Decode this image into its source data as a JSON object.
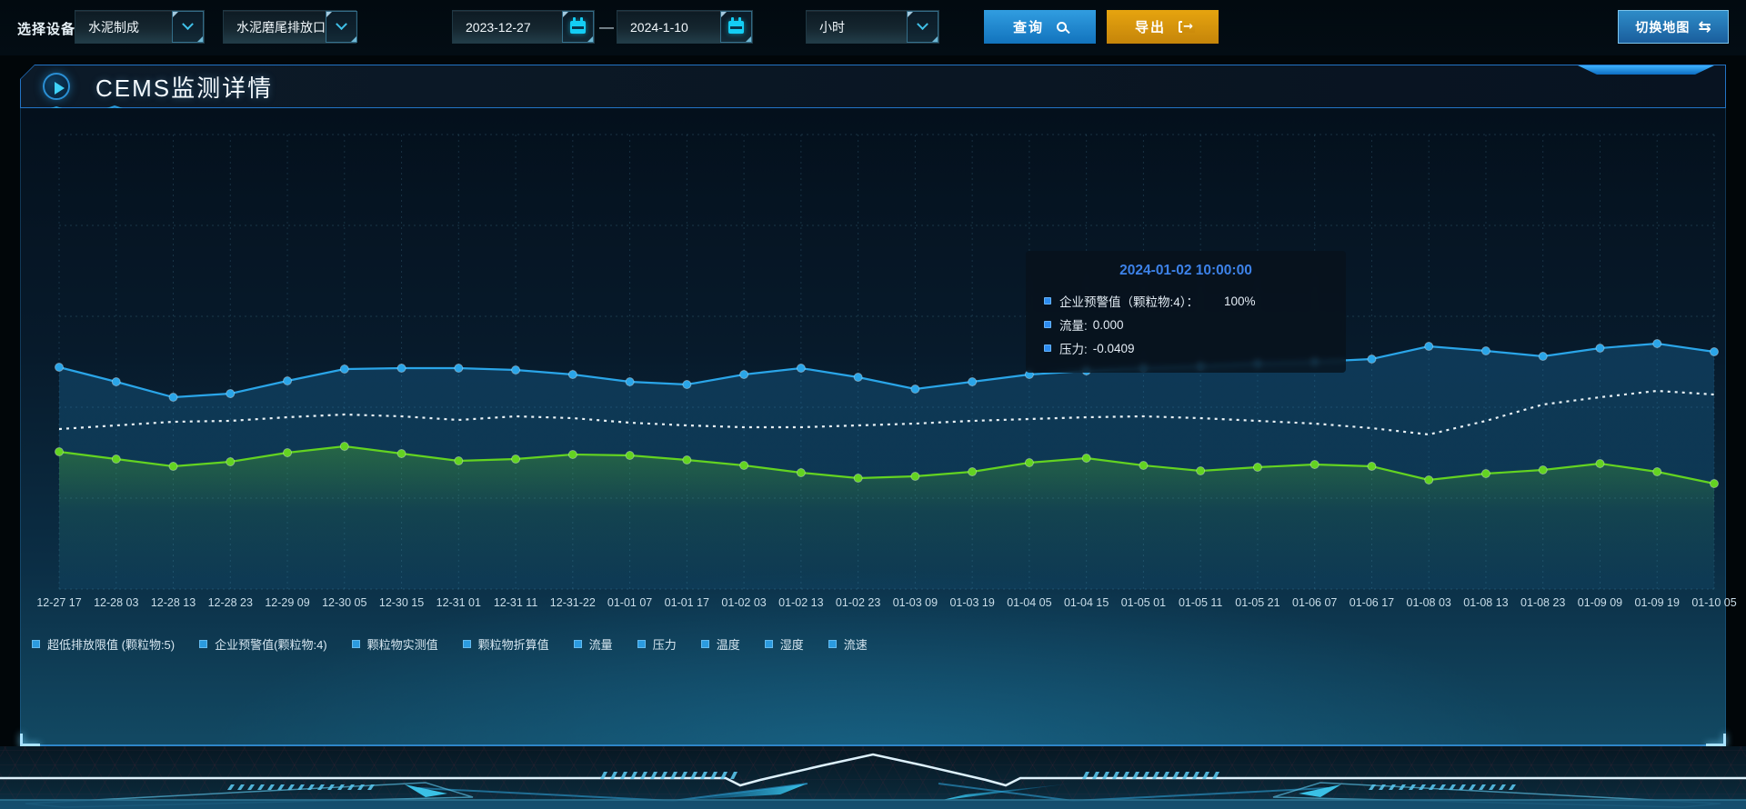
{
  "toolbar": {
    "device_label": "选择设备",
    "device_select": {
      "value": "水泥制成"
    },
    "outlet_select": {
      "value": "水泥磨尾排放口"
    },
    "date_start": "2023-12-27",
    "date_separator": "—",
    "date_end": "2024-1-10",
    "interval_select": {
      "value": "小时"
    },
    "query_button": "查询",
    "export_button": "导出",
    "map_button": "切换地图"
  },
  "panel": {
    "title": "CEMS监测详情"
  },
  "tooltip": {
    "title": "2024-01-02 10:00:00",
    "rows": [
      {
        "label": "企业预警值（颗粒物:4）：",
        "value": "100%",
        "wide_gap": true
      },
      {
        "label": "流量:",
        "value": "0.000",
        "wide_gap": false
      },
      {
        "label": "压力:",
        "value": "-0.0409",
        "wide_gap": false
      }
    ]
  },
  "legend": [
    "超低排放限值 (颗粒物:5)",
    "企业预警值(颗粒物:4)",
    "颗粒物实测值",
    "颗粒物折算值",
    "流量",
    "压力",
    "温度",
    "湿度",
    "流速"
  ],
  "chart_data": {
    "type": "line",
    "title": "",
    "xlabel": "",
    "ylabel": "",
    "y_axis_shown": false,
    "grid": "dashed",
    "legend_position": "bottom",
    "ylim": [
      0,
      100
    ],
    "x_labels": [
      "12-27 17",
      "12-28 03",
      "12-28 13",
      "12-28 23",
      "12-29 09",
      "12-30 05",
      "12-30 15",
      "12-31 01",
      "12-31 11",
      "12-31-22",
      "01-01 07",
      "01-01 17",
      "01-02 03",
      "01-02 13",
      "01-02 23",
      "01-03 09",
      "01-03 19",
      "01-04 05",
      "01-04 15",
      "01-05 01",
      "01-05 11",
      "01-05 21",
      "01-06 07",
      "01-06 17",
      "01-08 03",
      "01-08 13",
      "01-08 23",
      "01-09 09",
      "01-09 19",
      "01-10 05"
    ],
    "series": [
      {
        "name": "流量",
        "color": "#2aa5e8",
        "line_style": "solid",
        "markers": true,
        "area_fill": true,
        "values_normalized_0_100": [
          48.8,
          45.6,
          42.2,
          43,
          45.8,
          48.4,
          48.6,
          48.6,
          48.2,
          47.2,
          45.6,
          45,
          47.2,
          48.6,
          46.6,
          44,
          45.6,
          47.2,
          48,
          48.6,
          49,
          49.6,
          50,
          50.6,
          53.4,
          52.4,
          51.2,
          53,
          54,
          52.2
        ]
      },
      {
        "name": "企业预警值(颗粒物:4)",
        "color": "#e9f2f6",
        "line_style": "dotted",
        "markers": false,
        "area_fill": false,
        "values_normalized_0_100": [
          35.2,
          36,
          36.8,
          37,
          37.8,
          38.4,
          38,
          37.2,
          38,
          37.6,
          36.6,
          36,
          35.6,
          35.6,
          36,
          36.4,
          37,
          37.4,
          37.8,
          38,
          37.6,
          37,
          36.4,
          35.4,
          34,
          37,
          40.6,
          42.2,
          43.6,
          42.8
        ]
      },
      {
        "name": "压力",
        "color": "#63d321",
        "line_style": "solid",
        "markers": true,
        "area_fill": true,
        "values_normalized_0_100": [
          30.2,
          28.6,
          27,
          28,
          30,
          31.4,
          29.8,
          28.2,
          28.6,
          29.6,
          29.4,
          28.4,
          27.2,
          25.6,
          24.4,
          24.8,
          25.8,
          27.8,
          28.8,
          27.2,
          26,
          26.8,
          27.4,
          27,
          24,
          25.4,
          26.2,
          27.6,
          25.8,
          23.2
        ]
      }
    ]
  },
  "colors": {
    "accent_blue": "#2aa5e8",
    "accent_green": "#63d321",
    "accent_cyan": "#14cdf4",
    "tooltip_title": "#3d82e8",
    "export_orange": "#d79411",
    "grid_line": "rgba(110,190,220,0.20)"
  }
}
